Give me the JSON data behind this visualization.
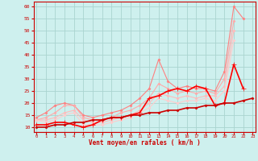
{
  "xlabel": "Vent moyen/en rafales ( km/h )",
  "bg_color": "#cef0ee",
  "grid_color": "#aad4d0",
  "x": [
    0,
    1,
    2,
    3,
    4,
    5,
    6,
    7,
    8,
    9,
    10,
    11,
    12,
    13,
    14,
    15,
    16,
    17,
    18,
    19,
    20,
    21,
    22,
    23
  ],
  "series": [
    {
      "color": "#ff8080",
      "alpha": 1.0,
      "lw": 0.8,
      "marker": "D",
      "ms": 1.5,
      "y": [
        14,
        16,
        19,
        20,
        19,
        15,
        14,
        15,
        16,
        17,
        19,
        22,
        26,
        38,
        29,
        26,
        27,
        26,
        26,
        25,
        33,
        60,
        55,
        null
      ]
    },
    {
      "color": "#ffaaaa",
      "alpha": 1.0,
      "lw": 0.8,
      "marker": "D",
      "ms": 1.5,
      "y": [
        13,
        14,
        16,
        19,
        19,
        14,
        13,
        13,
        14,
        16,
        17,
        19,
        22,
        28,
        26,
        24,
        25,
        24,
        25,
        24,
        30,
        54,
        null,
        null
      ]
    },
    {
      "color": "#ffbbbb",
      "alpha": 1.0,
      "lw": 0.8,
      "marker": "D",
      "ms": 1.5,
      "y": [
        13,
        13,
        14,
        16,
        17,
        13,
        12,
        12,
        13,
        14,
        15,
        17,
        20,
        24,
        23,
        22,
        23,
        22,
        23,
        23,
        27,
        50,
        null,
        null
      ]
    },
    {
      "color": "#ffcccc",
      "alpha": 1.0,
      "lw": 0.8,
      "marker": "D",
      "ms": 1.5,
      "y": [
        13,
        12,
        13,
        15,
        16,
        11,
        11,
        11,
        12,
        13,
        14,
        16,
        18,
        22,
        21,
        20,
        21,
        21,
        22,
        21,
        25,
        46,
        null,
        null
      ]
    },
    {
      "color": "#ff0000",
      "alpha": 1.0,
      "lw": 1.2,
      "marker": "+",
      "ms": 4.0,
      "y": [
        11,
        11,
        12,
        12,
        11,
        10,
        11,
        13,
        14,
        14,
        15,
        16,
        22,
        23,
        25,
        26,
        25,
        27,
        26,
        19,
        20,
        36,
        26,
        null
      ]
    },
    {
      "color": "#cc0000",
      "alpha": 1.0,
      "lw": 1.2,
      "marker": "D",
      "ms": 1.5,
      "y": [
        10,
        10,
        11,
        11,
        12,
        12,
        13,
        13,
        14,
        14,
        15,
        15,
        16,
        16,
        17,
        17,
        18,
        18,
        19,
        19,
        20,
        20,
        21,
        22
      ]
    }
  ],
  "ylim": [
    8,
    62
  ],
  "xlim": [
    -0.3,
    23.3
  ],
  "yticks": [
    10,
    15,
    20,
    25,
    30,
    35,
    40,
    45,
    50,
    55,
    60
  ],
  "xticks": [
    0,
    1,
    2,
    3,
    4,
    5,
    6,
    7,
    8,
    9,
    10,
    11,
    12,
    13,
    14,
    15,
    16,
    17,
    18,
    19,
    20,
    21,
    22,
    23
  ],
  "tick_color": "#cc0000",
  "label_color": "#cc0000"
}
